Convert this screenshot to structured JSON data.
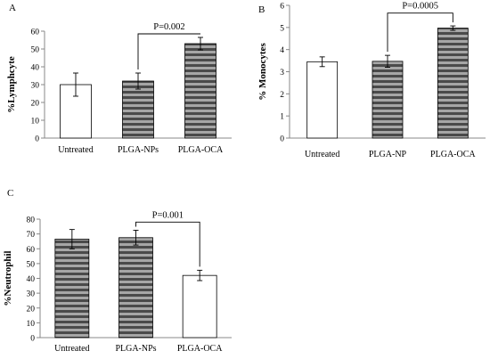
{
  "colors": {
    "stripe_dark": "#4a4a4a",
    "stripe_light": "#a6a6a6",
    "plain_fill": "#ffffff",
    "axis_color": "#888888"
  },
  "chart_data": [
    {
      "panel_label": "A",
      "type": "bar",
      "title": "",
      "xlabel": "",
      "ylabel": "%Lymphcyte",
      "ylim": [
        0,
        60
      ],
      "ytick_step": 10,
      "grid": false,
      "categories": [
        "Untreated",
        "PLGA-NPs",
        "PLGA-OCA"
      ],
      "values": [
        30,
        32,
        53
      ],
      "errors": [
        6.5,
        4.5,
        3.5
      ],
      "fills": [
        "plain",
        "stripe",
        "stripe"
      ],
      "comparison": {
        "from": 1,
        "to": 2,
        "label": "P=0.002",
        "level": 58.5
      }
    },
    {
      "panel_label": "B",
      "type": "bar",
      "title": "",
      "xlabel": "",
      "ylabel": "% Monocytes",
      "ylim": [
        0,
        6
      ],
      "ytick_step": 1,
      "grid": false,
      "categories": [
        "Untreated",
        "PLGA-NP",
        "PLGA-OCA"
      ],
      "values": [
        3.45,
        3.47,
        4.97
      ],
      "errors": [
        0.22,
        0.27,
        0.1
      ],
      "fills": [
        "plain",
        "stripe",
        "stripe"
      ],
      "comparison": {
        "from": 1,
        "to": 2,
        "label": "P=0.0005",
        "level": 5.65
      }
    },
    {
      "panel_label": "C",
      "type": "bar",
      "title": "",
      "xlabel": "",
      "ylabel": "%Neutrophil",
      "ylim": [
        0,
        80
      ],
      "ytick_step": 10,
      "grid": false,
      "categories": [
        "Untreated",
        "PLGA-NPs",
        "PLGA-OCA"
      ],
      "values": [
        66.5,
        67.5,
        42
      ],
      "errors": [
        6.5,
        5,
        3.5
      ],
      "fills": [
        "stripe",
        "stripe",
        "plain"
      ],
      "comparison": {
        "from": 1,
        "to": 2,
        "label": "P=0.001",
        "level": 78
      }
    }
  ]
}
